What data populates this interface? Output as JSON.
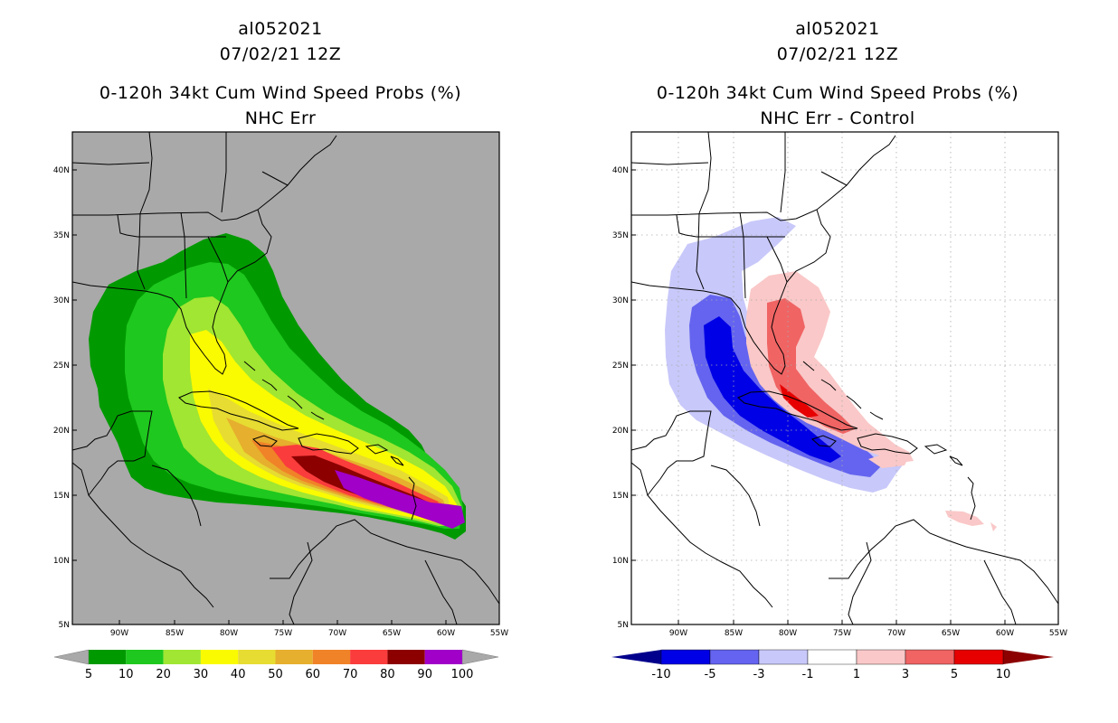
{
  "left": {
    "storm_id": "al052021",
    "datetime": "07/02/21 12Z",
    "product": "0-120h 34kt Cum Wind Speed Probs (%)",
    "subtitle": "NHC Err",
    "background": "#a9a9a9",
    "colorbar": {
      "labels": [
        "5",
        "10",
        "20",
        "30",
        "40",
        "50",
        "60",
        "70",
        "80",
        "90",
        "100"
      ],
      "colors": [
        "#009a00",
        "#1ec81e",
        "#a0e632",
        "#fafa00",
        "#e6dc32",
        "#e6af2d",
        "#f08228",
        "#fa3c3c",
        "#8c0000",
        "#a000c8"
      ],
      "end_color": "#a9a9a9"
    }
  },
  "right": {
    "storm_id": "al052021",
    "datetime": "07/02/21 12Z",
    "product": "0-120h 34kt Cum Wind Speed Probs (%)",
    "subtitle": "NHC Err - Control",
    "background": "#ffffff",
    "colorbar": {
      "labels": [
        "-10",
        "-5",
        "-3",
        "-1",
        "1",
        "3",
        "5",
        "10"
      ],
      "colors": [
        "#0000e6",
        "#6464f0",
        "#c8c8fa",
        "#ffffff",
        "#fac8c8",
        "#f06464",
        "#e60000"
      ],
      "low_end": "#00008c",
      "high_end": "#8c0000"
    }
  },
  "axes": {
    "lon_labels": [
      "90W",
      "85W",
      "80W",
      "75W",
      "70W",
      "65W",
      "60W",
      "55W"
    ],
    "lat_labels": [
      "5N",
      "10N",
      "15N",
      "20N",
      "25N",
      "30N",
      "35N",
      "40N"
    ],
    "lon_range": [
      -94,
      -55
    ],
    "lat_range": [
      5,
      43
    ]
  }
}
